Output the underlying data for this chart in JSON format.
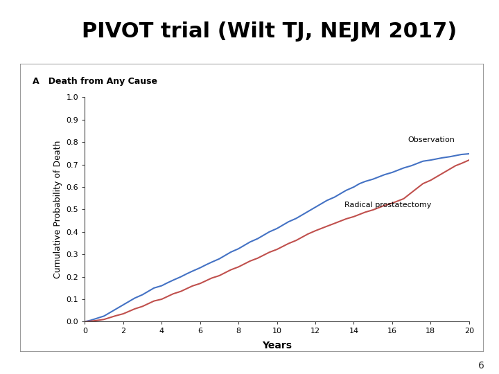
{
  "title": "PIVOT trial (Wilt TJ, NEJM 2017)",
  "slide_label": "A   Death from Any Cause",
  "xlabel": "Years",
  "ylabel": "Cumulative Probability of Death",
  "xlim": [
    0,
    20
  ],
  "ylim": [
    0.0,
    1.0
  ],
  "xticks": [
    0,
    2,
    4,
    6,
    8,
    10,
    12,
    14,
    16,
    18,
    20
  ],
  "yticks": [
    0.0,
    0.1,
    0.2,
    0.3,
    0.4,
    0.5,
    0.6,
    0.7,
    0.8,
    0.9,
    1.0
  ],
  "obs_color": "#4472C4",
  "rp_color": "#C0504D",
  "obs_label": "Observation",
  "rp_label": "Radical prostatectomy",
  "title_fontsize": 22,
  "title_color": "#000000",
  "axis_label_fontsize": 9,
  "tick_fontsize": 8,
  "background_slide": "#FFFFFF",
  "plot_bg": "#FFFFFF",
  "footer_number": "6",
  "logo_color": "#1E4D8C",
  "obs_x": [
    0,
    0.3,
    0.6,
    1.0,
    1.3,
    1.6,
    2.0,
    2.3,
    2.6,
    3.0,
    3.3,
    3.6,
    4.0,
    4.3,
    4.6,
    5.0,
    5.3,
    5.6,
    6.0,
    6.3,
    6.6,
    7.0,
    7.3,
    7.6,
    8.0,
    8.3,
    8.6,
    9.0,
    9.3,
    9.6,
    10.0,
    10.3,
    10.6,
    11.0,
    11.3,
    11.6,
    12.0,
    12.3,
    12.6,
    13.0,
    13.3,
    13.6,
    14.0,
    14.3,
    14.6,
    15.0,
    15.3,
    15.6,
    16.0,
    16.3,
    16.6,
    17.0,
    17.3,
    17.6,
    18.0,
    18.3,
    18.6,
    19.0,
    19.3,
    19.6,
    20.0
  ],
  "obs_y": [
    0.0,
    0.006,
    0.014,
    0.025,
    0.04,
    0.055,
    0.075,
    0.09,
    0.105,
    0.12,
    0.135,
    0.15,
    0.16,
    0.173,
    0.185,
    0.2,
    0.213,
    0.225,
    0.24,
    0.253,
    0.265,
    0.28,
    0.295,
    0.31,
    0.325,
    0.34,
    0.355,
    0.37,
    0.385,
    0.4,
    0.415,
    0.43,
    0.445,
    0.46,
    0.475,
    0.49,
    0.51,
    0.525,
    0.54,
    0.555,
    0.57,
    0.585,
    0.6,
    0.615,
    0.625,
    0.635,
    0.645,
    0.655,
    0.665,
    0.675,
    0.685,
    0.695,
    0.705,
    0.715,
    0.72,
    0.725,
    0.73,
    0.735,
    0.74,
    0.745,
    0.748
  ],
  "rp_x": [
    0,
    0.3,
    0.6,
    1.0,
    1.3,
    1.6,
    2.0,
    2.3,
    2.6,
    3.0,
    3.3,
    3.6,
    4.0,
    4.3,
    4.6,
    5.0,
    5.3,
    5.6,
    6.0,
    6.3,
    6.6,
    7.0,
    7.3,
    7.6,
    8.0,
    8.3,
    8.6,
    9.0,
    9.3,
    9.6,
    10.0,
    10.3,
    10.6,
    11.0,
    11.3,
    11.6,
    12.0,
    12.3,
    12.6,
    13.0,
    13.3,
    13.6,
    14.0,
    14.3,
    14.6,
    15.0,
    15.3,
    15.6,
    16.0,
    16.3,
    16.6,
    17.0,
    17.3,
    17.6,
    18.0,
    18.3,
    18.6,
    19.0,
    19.3,
    19.6,
    20.0
  ],
  "rp_y": [
    0.0,
    0.002,
    0.005,
    0.01,
    0.018,
    0.026,
    0.035,
    0.046,
    0.057,
    0.068,
    0.08,
    0.092,
    0.1,
    0.112,
    0.124,
    0.135,
    0.147,
    0.159,
    0.17,
    0.182,
    0.194,
    0.205,
    0.218,
    0.231,
    0.244,
    0.257,
    0.27,
    0.283,
    0.296,
    0.309,
    0.322,
    0.335,
    0.348,
    0.362,
    0.376,
    0.39,
    0.405,
    0.415,
    0.425,
    0.438,
    0.448,
    0.458,
    0.468,
    0.478,
    0.488,
    0.498,
    0.508,
    0.518,
    0.528,
    0.538,
    0.548,
    0.575,
    0.595,
    0.615,
    0.63,
    0.645,
    0.66,
    0.68,
    0.695,
    0.705,
    0.72
  ]
}
